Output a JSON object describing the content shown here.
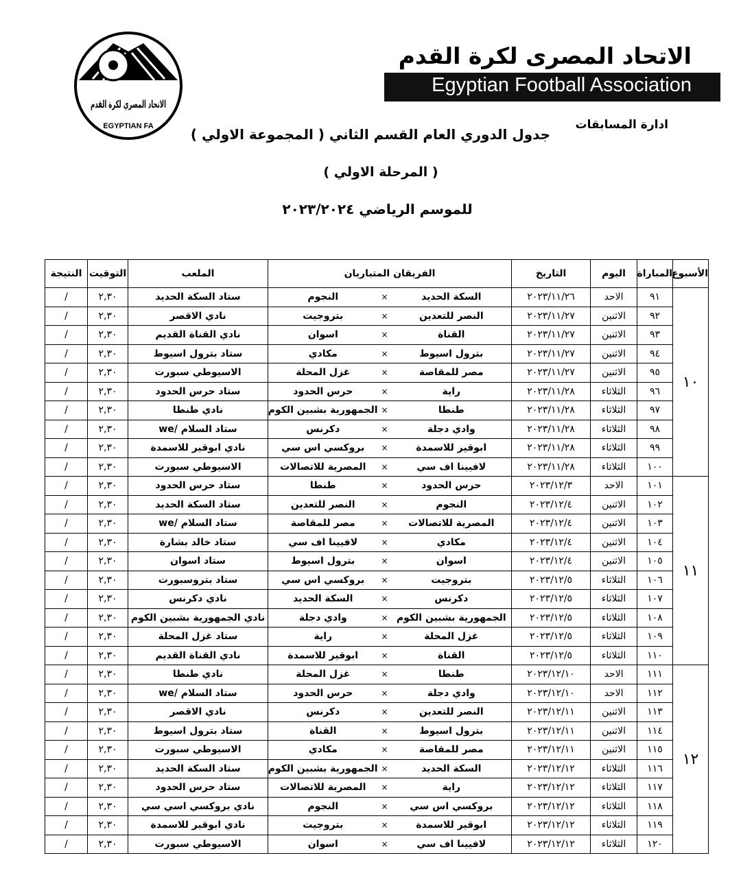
{
  "header": {
    "ar_title": "الاتحاد المصرى لكرة القدم",
    "en_title": "Egyptian Football Association",
    "department": "ادارة المسابقات",
    "logo_ar": "الاتحاد المصري لكرة القدم",
    "logo_en": "EGYPTIAN FA"
  },
  "document": {
    "title": "جدول الدوري العام القسم الثاني ( المجموعة الاولي )",
    "stage": "( المرحلة الاولي )",
    "season": "للموسم الرياضي ٢٠٢٣/٢٠٢٤"
  },
  "table": {
    "columns": [
      "الأسبوع",
      "المباراة",
      "اليوم",
      "التاريخ",
      "الفريقان المتباريان",
      "الملعب",
      "التوقيت",
      "النتيجة"
    ],
    "vs": "×",
    "weeks": [
      {
        "week": "١٠",
        "matches": [
          {
            "no": "٩١",
            "day": "الاحد",
            "date": "٢٠٢٣/١١/٢٦",
            "home": "السكة الحديد",
            "away": "النجوم",
            "venue": "ستاد السكة الحديد",
            "time": "٢,٣٠",
            "result": "/"
          },
          {
            "no": "٩٢",
            "day": "الاثنين",
            "date": "٢٠٢٣/١١/٢٧",
            "home": "النصر للتعدين",
            "away": "بتروجيت",
            "venue": "نادي الاقصر",
            "time": "٢,٣٠",
            "result": "/"
          },
          {
            "no": "٩٣",
            "day": "الاثنين",
            "date": "٢٠٢٣/١١/٢٧",
            "home": "القناة",
            "away": "اسوان",
            "venue": "نادي القناة القديم",
            "time": "٢,٣٠",
            "result": "/"
          },
          {
            "no": "٩٤",
            "day": "الاثنين",
            "date": "٢٠٢٣/١١/٢٧",
            "home": "بترول اسيوط",
            "away": "مكادي",
            "venue": "ستاد بترول اسيوط",
            "time": "٢,٣٠",
            "result": "/"
          },
          {
            "no": "٩٥",
            "day": "الاثنين",
            "date": "٢٠٢٣/١١/٢٧",
            "home": "مصر للمقاصة",
            "away": "غزل المحلة",
            "venue": "الاسيوطي سبورت",
            "time": "٢,٣٠",
            "result": "/"
          },
          {
            "no": "٩٦",
            "day": "الثلاثاء",
            "date": "٢٠٢٣/١١/٢٨",
            "home": "راية",
            "away": "حرس الحدود",
            "venue": "ستاد حرس الحدود",
            "time": "٢,٣٠",
            "result": "/"
          },
          {
            "no": "٩٧",
            "day": "الثلاثاء",
            "date": "٢٠٢٣/١١/٢٨",
            "home": "طنطا",
            "away": "الجمهورية بشبين الكوم",
            "venue": "نادي طنطا",
            "time": "٢,٣٠",
            "result": "/"
          },
          {
            "no": "٩٨",
            "day": "الثلاثاء",
            "date": "٢٠٢٣/١١/٢٨",
            "home": "وادي دجلة",
            "away": "دكرنس",
            "venue": "ستاد السلام /we",
            "time": "٢,٣٠",
            "result": "/"
          },
          {
            "no": "٩٩",
            "day": "الثلاثاء",
            "date": "٢٠٢٣/١١/٢٨",
            "home": "ابوقير للاسمدة",
            "away": "بروكسي اس سي",
            "venue": "نادي ابوقير للاسمدة",
            "time": "٢,٣٠",
            "result": "/"
          },
          {
            "no": "١٠٠",
            "day": "الثلاثاء",
            "date": "٢٠٢٣/١١/٢٨",
            "home": "لافيينا اف سي",
            "away": "المصرية للاتصالات",
            "venue": "الاسيوطي سبورت",
            "time": "٢,٣٠",
            "result": "/"
          }
        ]
      },
      {
        "week": "١١",
        "matches": [
          {
            "no": "١٠١",
            "day": "الاحد",
            "date": "٢٠٢٣/١٢/٣",
            "home": "حرس الحدود",
            "away": "طنطا",
            "venue": "ستاد حرس الحدود",
            "time": "٢,٣٠",
            "result": "/"
          },
          {
            "no": "١٠٢",
            "day": "الاثنين",
            "date": "٢٠٢٣/١٢/٤",
            "home": "النجوم",
            "away": "النصر للتعدين",
            "venue": "ستاد السكة الحديد",
            "time": "٢,٣٠",
            "result": "/"
          },
          {
            "no": "١٠٣",
            "day": "الاثنين",
            "date": "٢٠٢٣/١٢/٤",
            "home": "المصرية للاتصالات",
            "away": "مصر للمقاصة",
            "venue": "ستاد السلام /we",
            "time": "٢,٣٠",
            "result": "/"
          },
          {
            "no": "١٠٤",
            "day": "الاثنين",
            "date": "٢٠٢٣/١٢/٤",
            "home": "مكادي",
            "away": "لافيينا اف سي",
            "venue": "ستاد خالد بشارة",
            "time": "٢,٣٠",
            "result": "/"
          },
          {
            "no": "١٠٥",
            "day": "الاثنين",
            "date": "٢٠٢٣/١٢/٤",
            "home": "اسوان",
            "away": "بترول اسيوط",
            "venue": "ستاد اسوان",
            "time": "٢,٣٠",
            "result": "/"
          },
          {
            "no": "١٠٦",
            "day": "الثلاثاء",
            "date": "٢٠٢٣/١٢/٥",
            "home": "بتروجيت",
            "away": "بروكسي اس سي",
            "venue": "ستاد بتروسبورت",
            "time": "٢,٣٠",
            "result": "/"
          },
          {
            "no": "١٠٧",
            "day": "الثلاثاء",
            "date": "٢٠٢٣/١٢/٥",
            "home": "دكرنس",
            "away": "السكة الحديد",
            "venue": "نادي دكرنس",
            "time": "٢,٣٠",
            "result": "/"
          },
          {
            "no": "١٠٨",
            "day": "الثلاثاء",
            "date": "٢٠٢٣/١٢/٥",
            "home": "الجمهورية بشبين الكوم",
            "away": "وادي دجلة",
            "venue": "نادي الجمهورية بشبين الكوم",
            "time": "٢,٣٠",
            "result": "/"
          },
          {
            "no": "١٠٩",
            "day": "الثلاثاء",
            "date": "٢٠٢٣/١٢/٥",
            "home": "غزل المحلة",
            "away": "راية",
            "venue": "ستاد غزل المحلة",
            "time": "٢,٣٠",
            "result": "/"
          },
          {
            "no": "١١٠",
            "day": "الثلاثاء",
            "date": "٢٠٢٣/١٢/٥",
            "home": "القناة",
            "away": "ابوقير للاسمدة",
            "venue": "نادي القناة القديم",
            "time": "٢,٣٠",
            "result": "/"
          }
        ]
      },
      {
        "week": "١٢",
        "matches": [
          {
            "no": "١١١",
            "day": "الاحد",
            "date": "٢٠٢٣/١٢/١٠",
            "home": "طنطا",
            "away": "غزل المحلة",
            "venue": "نادي طنطا",
            "time": "٢,٣٠",
            "result": "/"
          },
          {
            "no": "١١٢",
            "day": "الاحد",
            "date": "٢٠٢٣/١٢/١٠",
            "home": "وادي دجلة",
            "away": "حرس الحدود",
            "venue": "ستاد السلام /we",
            "time": "٢,٣٠",
            "result": "/"
          },
          {
            "no": "١١٣",
            "day": "الاثنين",
            "date": "٢٠٢٣/١٢/١١",
            "home": "النصر للتعدين",
            "away": "دكرنس",
            "venue": "نادي الاقصر",
            "time": "٢,٣٠",
            "result": "/"
          },
          {
            "no": "١١٤",
            "day": "الاثنين",
            "date": "٢٠٢٣/١٢/١١",
            "home": "بترول اسيوط",
            "away": "القناة",
            "venue": "ستاد بترول اسيوط",
            "time": "٢,٣٠",
            "result": "/"
          },
          {
            "no": "١١٥",
            "day": "الاثنين",
            "date": "٢٠٢٣/١٢/١١",
            "home": "مصر للمقاصة",
            "away": "مكادي",
            "venue": "الاسيوطي سبورت",
            "time": "٢,٣٠",
            "result": "/"
          },
          {
            "no": "١١٦",
            "day": "الثلاثاء",
            "date": "٢٠٢٣/١٢/١٢",
            "home": "السكة الحديد",
            "away": "الجمهورية بشبين الكوم",
            "venue": "ستاد السكة الحديد",
            "time": "٢,٣٠",
            "result": "/"
          },
          {
            "no": "١١٧",
            "day": "الثلاثاء",
            "date": "٢٠٢٣/١٢/١٢",
            "home": "راية",
            "away": "المصرية للاتصالات",
            "venue": "ستاد حرس الحدود",
            "time": "٢,٣٠",
            "result": "/"
          },
          {
            "no": "١١٨",
            "day": "الثلاثاء",
            "date": "٢٠٢٣/١٢/١٢",
            "home": "بروكسي اس سي",
            "away": "النجوم",
            "venue": "نادي بروكسي اسي سي",
            "time": "٢,٣٠",
            "result": "/"
          },
          {
            "no": "١١٩",
            "day": "الثلاثاء",
            "date": "٢٠٢٣/١٢/١٢",
            "home": "ابوقير للاسمدة",
            "away": "بتروجيت",
            "venue": "نادي ابوقير للاسمدة",
            "time": "٢,٣٠",
            "result": "/"
          },
          {
            "no": "١٢٠",
            "day": "الثلاثاء",
            "date": "٢٠٢٣/١٢/١٢",
            "home": "لافيينا اف سي",
            "away": "اسوان",
            "venue": "الاسيوطي سبورت",
            "time": "٢,٣٠",
            "result": "/"
          }
        ]
      }
    ]
  }
}
